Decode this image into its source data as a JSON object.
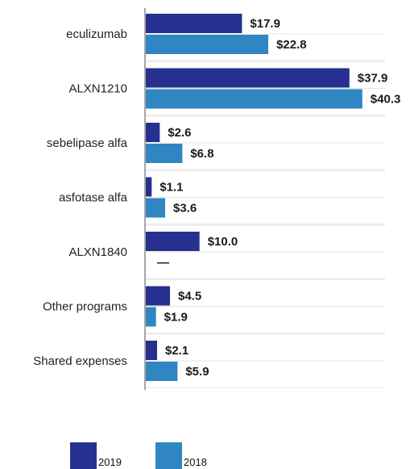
{
  "chart_data": {
    "type": "bar",
    "orientation": "horizontal",
    "categories": [
      "eculizumab",
      "ALXN1210",
      "sebelipase alfa",
      "asfotase alfa",
      "ALXN1840",
      "Other programs",
      "Shared expenses"
    ],
    "series": [
      {
        "name": "2019",
        "color": "#26318f",
        "values": [
          17.9,
          37.9,
          2.6,
          1.1,
          10.0,
          4.5,
          2.1
        ],
        "labels": [
          "$17.9",
          "$37.9",
          "$2.6",
          "$1.1",
          "$10.0",
          "$4.5",
          "$2.1"
        ]
      },
      {
        "name": "2018",
        "color": "#2f86c2",
        "values": [
          22.8,
          40.3,
          6.8,
          3.6,
          null,
          1.9,
          5.9
        ],
        "labels": [
          "$22.8",
          "$40.3",
          "$6.8",
          "$3.6",
          "—",
          "$1.9",
          "$5.9"
        ]
      }
    ],
    "xlim": [
      0,
      45
    ],
    "grid": true,
    "legend_position": "bottom-left"
  }
}
